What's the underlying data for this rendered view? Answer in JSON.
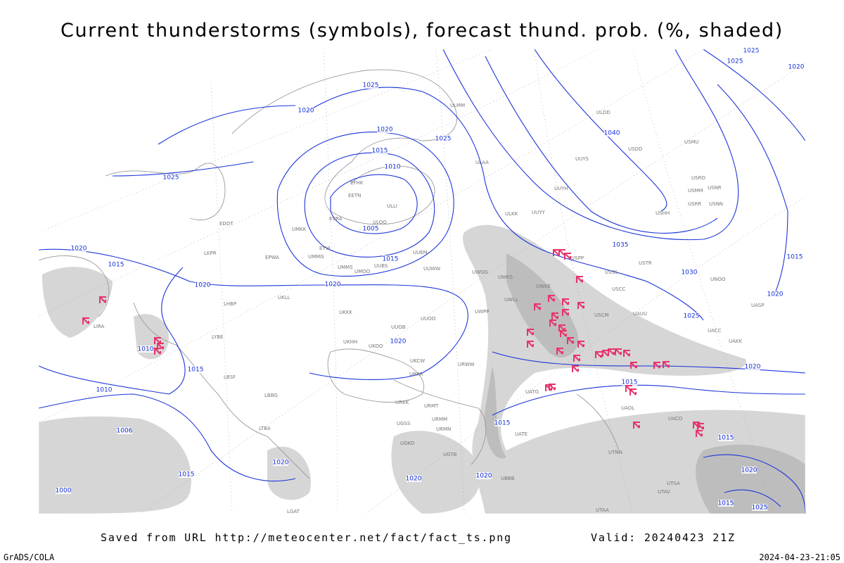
{
  "title": "Current thunderstorms (symbols), forecast thund. prob. (%, shaded)",
  "footer": {
    "source": "Saved from URL http://meteocenter.net/fact/fact_ts.png",
    "valid": "Valid: 20240423 21Z",
    "software": "GrADS/COLA",
    "timestamp": "2024-04-23-21:05"
  },
  "isobar_labels": [
    "1025",
    "1020",
    "1020",
    "1025",
    "1015",
    "1010",
    "1005",
    "1015",
    "1020",
    "1025",
    "1020",
    "1015",
    "1020",
    "1010",
    "1015",
    "1010",
    "1020",
    "1040",
    "1035",
    "1030",
    "1025",
    "1020",
    "1015",
    "1015",
    "1006",
    "1000",
    "1020",
    "1015",
    "1020",
    "1020",
    "1015",
    "1020",
    "1015",
    "1025",
    "1025",
    "1020",
    "1025",
    "1020",
    "1015"
  ],
  "stations": [
    "ULMM",
    "ULDD",
    "USDD",
    "USMU",
    "UUYS",
    "ULAA",
    "USRO",
    "USNR",
    "USMM",
    "USRR",
    "USNN",
    "UUYH",
    "USHH",
    "UUYY",
    "ULKK",
    "EFHK",
    "EETN",
    "EVRA",
    "ULLI",
    "ULOO",
    "UMKK",
    "EDDT",
    "UMMG",
    "EYVI",
    "UMMS",
    "UMOO",
    "UUBS",
    "UUEM",
    "UUWW",
    "UWGG",
    "UWKS",
    "USPP",
    "USCC",
    "USSS",
    "USTR",
    "UNOO",
    "USCM",
    "UAUU",
    "UACC",
    "UAKK",
    "UASP",
    "UWKE",
    "UWLL",
    "UWPP",
    "EPWA",
    "LKPR",
    "LHBP",
    "LIRA",
    "UKLL",
    "UKKK",
    "UUOB",
    "UUOO",
    "UKHH",
    "UKOO",
    "URRR",
    "URWW",
    "LYBE",
    "LBSF",
    "LBBG",
    "UKCW",
    "URKK",
    "UGSS",
    "UGKO",
    "URMT",
    "URMM",
    "URMN",
    "UGTB",
    "UBBB",
    "UATE",
    "UATG",
    "UAOL",
    "UACO",
    "UTNN",
    "UTSA",
    "UTAV",
    "UTAA",
    "LGAT",
    "LTBA"
  ]
}
